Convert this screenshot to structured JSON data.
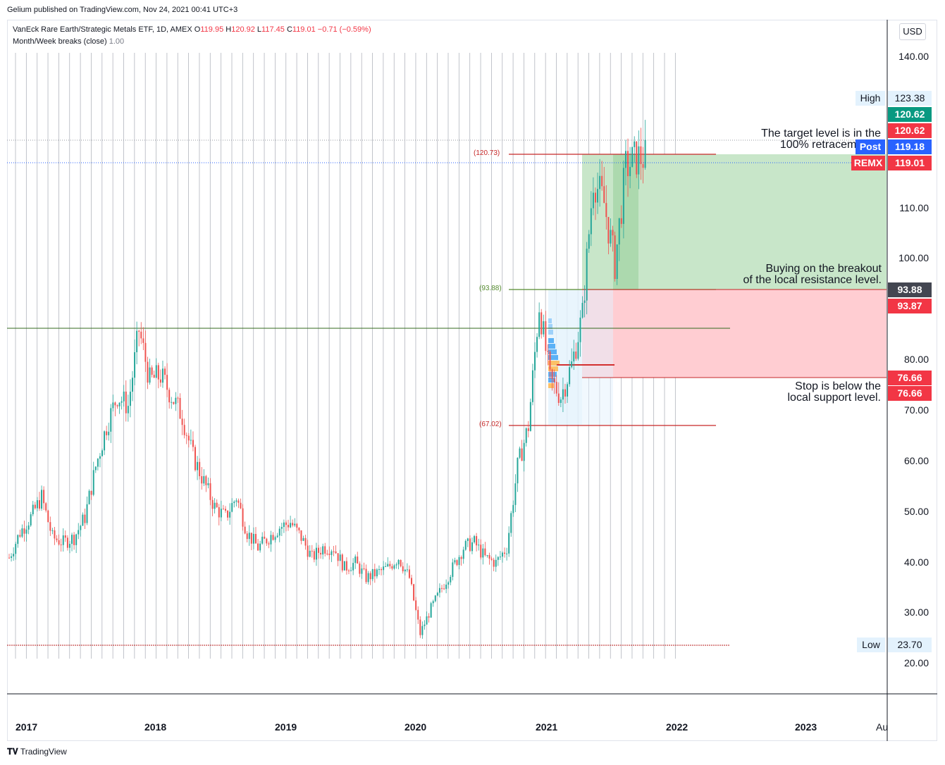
{
  "header": {
    "published": "Gelium published on TradingView.com, Nov 24, 2021 00:41 UTC+3"
  },
  "legend": {
    "symbol": "VanEck Rare Earth/Strategic Metals ETF, 1D, AMEX",
    "open_label": "O",
    "open": "119.95",
    "high_label": "H",
    "high": "120.92",
    "low_label": "L",
    "low": "117.45",
    "close_label": "C",
    "close": "119.01",
    "change": "−0.71 (−0.59%)",
    "indicator": "Month/Week breaks (close)",
    "indicator_value": "1.00"
  },
  "currency_button": "USD",
  "price_scale": [
    "140.00",
    "110.00",
    "100.00",
    "80.00",
    "70.00",
    "60.00",
    "50.00",
    "40.00",
    "30.00",
    "20.00"
  ],
  "tags": {
    "high_name": "High",
    "high_value": "123.38",
    "target_green": "120.62",
    "target_red": "120.62",
    "post_name": "Post",
    "post_value": "119.18",
    "remx_name": "REMX",
    "remx_value": "119.01",
    "entry_dark": "93.88",
    "entry_red": "93.87",
    "stop_1": "76.66",
    "stop_2": "76.66",
    "low_name": "Low",
    "low_value": "23.70"
  },
  "annotations": {
    "target": "The target level is in the\n100% retracement z",
    "entry": "Buying on the breakout\nof the local resistance level.",
    "stop": "Stop is below the\nlocal support level."
  },
  "fib_levels": {
    "top": "(120.73)",
    "mid": "(93.88)",
    "bottom": "(67.02)"
  },
  "x_axis": [
    "2017",
    "2018",
    "2019",
    "2020",
    "2021",
    "2022",
    "2023",
    "Au"
  ],
  "colors": {
    "up": "#26a69a",
    "down": "#ef5350",
    "profit_zone": "#c8e6c9",
    "loss_zone": "#ffcdd2",
    "tag_green": "#089981",
    "tag_red": "#f23645",
    "tag_blue": "#2962ff"
  },
  "footer": "TradingView",
  "chart_data": {
    "type": "line",
    "title": "VanEck Rare Earth/Strategic Metals ETF, 1D, AMEX",
    "xlabel": "",
    "ylabel": "",
    "ylim": [
      14,
      148
    ],
    "x": [
      "2017-01",
      "2017-02",
      "2017-03",
      "2017-04",
      "2017-05",
      "2017-06",
      "2017-07",
      "2017-08",
      "2017-09",
      "2017-10",
      "2017-11",
      "2017-12",
      "2018-01",
      "2018-02",
      "2018-03",
      "2018-04",
      "2018-05",
      "2018-06",
      "2018-07",
      "2018-08",
      "2018-09",
      "2018-10",
      "2018-11",
      "2018-12",
      "2019-01",
      "2019-02",
      "2019-03",
      "2019-04",
      "2019-05",
      "2019-06",
      "2019-07",
      "2019-08",
      "2019-09",
      "2019-10",
      "2019-11",
      "2019-12",
      "2020-01",
      "2020-02",
      "2020-03",
      "2020-04",
      "2020-05",
      "2020-06",
      "2020-07",
      "2020-08",
      "2020-09",
      "2020-10",
      "2020-11",
      "2020-12",
      "2021-01",
      "2021-02",
      "2021-03",
      "2021-04",
      "2021-05",
      "2021-06",
      "2021-07",
      "2021-08",
      "2021-09",
      "2021-10",
      "2021-11"
    ],
    "series": [
      {
        "values": [
          40,
          45,
          48,
          52,
          44,
          43,
          44,
          48,
          58,
          66,
          72,
          70,
          85,
          75,
          76,
          72,
          68,
          60,
          55,
          50,
          48,
          52,
          45,
          42,
          44,
          46,
          47,
          44,
          40,
          42,
          42,
          38,
          39,
          36,
          37,
          38,
          40,
          36,
          25,
          30,
          34,
          38,
          42,
          43,
          40,
          39,
          42,
          58,
          66,
          90,
          75,
          72,
          78,
          88,
          115,
          110,
          98,
          117,
          119
        ]
      }
    ]
  }
}
